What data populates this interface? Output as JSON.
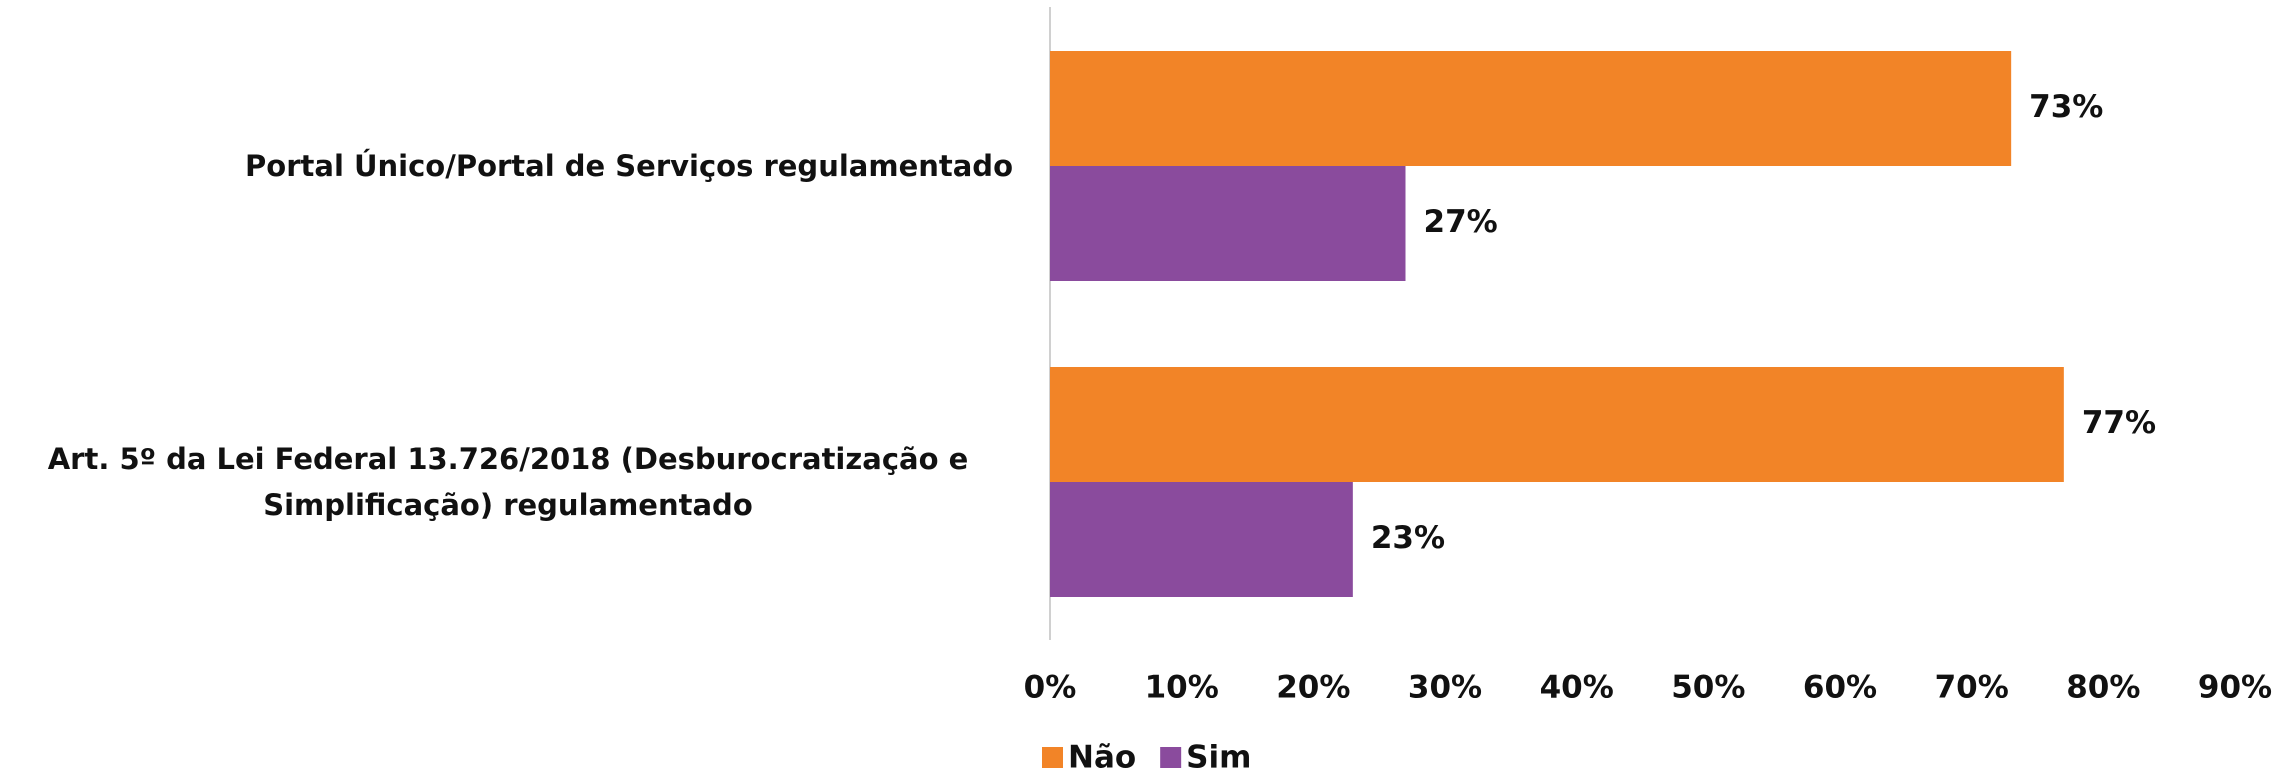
{
  "chart_data": {
    "type": "bar",
    "orientation": "horizontal",
    "categories": [
      "Portal Único/Portal de Serviços regulamentado",
      "Art. 5º da Lei Federal 13.726/2018 (Desburocratização e Simplificação) regulamentado"
    ],
    "series": [
      {
        "name": "Não",
        "color": "#f28427",
        "values": [
          73,
          77
        ],
        "value_labels": [
          "73%",
          "77%"
        ]
      },
      {
        "name": "Sim",
        "color": "#8a4b9d",
        "values": [
          27,
          23
        ],
        "value_labels": [
          "27%",
          "23%"
        ]
      }
    ],
    "xlim": [
      0,
      90
    ],
    "xticks": [
      {
        "value": 0,
        "label": "0%"
      },
      {
        "value": 10,
        "label": "10%"
      },
      {
        "value": 20,
        "label": "20%"
      },
      {
        "value": 30,
        "label": "30%"
      },
      {
        "value": 40,
        "label": "40%"
      },
      {
        "value": 50,
        "label": "50%"
      },
      {
        "value": 60,
        "label": "60%"
      },
      {
        "value": 70,
        "label": "70%"
      },
      {
        "value": 80,
        "label": "80%"
      },
      {
        "value": 90,
        "label": "90%"
      }
    ],
    "grid": false,
    "legend": "bottom"
  }
}
